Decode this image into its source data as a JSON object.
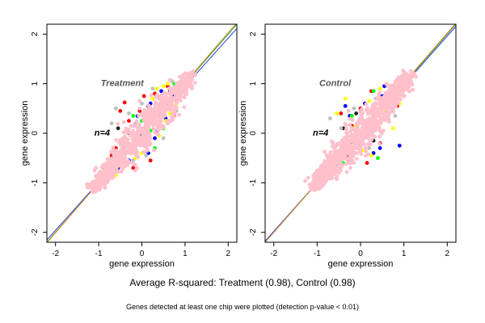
{
  "summary": "Average R-squared: Treatment (0.98), Control (0.98)",
  "footnote": "Genes detected at least one chip were plotted (detection p-value < 0.01)",
  "chart_data": [
    {
      "type": "scatter",
      "title": "Treatment",
      "annotation": "n=4",
      "xlabel": "gene expression",
      "ylabel": "gene expression",
      "xlim": [
        -2.2,
        2.2
      ],
      "ylim": [
        -2.2,
        2.2
      ],
      "xticks": [
        -2,
        -1,
        0,
        1,
        2
      ],
      "yticks": [
        -2,
        -1,
        0,
        1,
        2
      ],
      "grid": false,
      "reference_lines": [
        {
          "slope": 1.0,
          "intercept": 0.0,
          "color": "#2aa02a"
        },
        {
          "slope": 0.97,
          "intercept": -0.02,
          "color": "#2b3cd6"
        },
        {
          "slope": 1.01,
          "intercept": 0.01,
          "color": "#e08a2c"
        }
      ],
      "series": [
        {
          "color": "#0000ff",
          "points": [
            [
              -1.0,
              -0.95
            ],
            [
              -0.75,
              -0.6
            ],
            [
              -0.4,
              -0.2
            ],
            [
              0.1,
              0.0
            ],
            [
              0.35,
              0.05
            ],
            [
              0.3,
              -0.1
            ],
            [
              0.55,
              0.3
            ],
            [
              0.6,
              0.55
            ],
            [
              0.45,
              0.85
            ],
            [
              0.85,
              0.9
            ],
            [
              -0.1,
              0.35
            ],
            [
              -0.3,
              -0.55
            ],
            [
              0.2,
              0.6
            ],
            [
              0.7,
              0.75
            ],
            [
              -0.55,
              -0.7
            ],
            [
              0.15,
              -0.4
            ]
          ]
        },
        {
          "color": "#ff0000",
          "points": [
            [
              -0.5,
              0.45
            ],
            [
              -0.4,
              0.62
            ],
            [
              -0.6,
              -0.3
            ],
            [
              -0.05,
              0.45
            ],
            [
              0.2,
              -0.55
            ],
            [
              0.4,
              0.2
            ],
            [
              0.6,
              0.95
            ],
            [
              -0.2,
              -0.7
            ],
            [
              0.5,
              0.5
            ],
            [
              0.05,
              0.75
            ],
            [
              -0.7,
              -0.45
            ],
            [
              0.75,
              0.35
            ],
            [
              0.3,
              0.8
            ],
            [
              -0.3,
              0.25
            ]
          ]
        },
        {
          "color": "#ffff00",
          "points": [
            [
              0.35,
              0.9
            ],
            [
              0.5,
              0.95
            ],
            [
              0.7,
              0.7
            ],
            [
              0.8,
              0.6
            ],
            [
              0.9,
              0.8
            ],
            [
              -0.15,
              -0.5
            ],
            [
              0.1,
              -0.25
            ],
            [
              0.4,
              -0.05
            ],
            [
              0.6,
              1.0
            ],
            [
              0.25,
              0.7
            ],
            [
              -0.45,
              -0.65
            ],
            [
              0.95,
              1.05
            ],
            [
              0.55,
              0.25
            ],
            [
              0.65,
              0.4
            ],
            [
              0.0,
              -0.4
            ],
            [
              -0.6,
              -0.85
            ]
          ]
        },
        {
          "color": "#00ff00",
          "points": [
            [
              -0.9,
              -0.7
            ],
            [
              -0.65,
              -0.55
            ],
            [
              -0.3,
              -0.35
            ],
            [
              0.0,
              0.25
            ],
            [
              0.3,
              -0.3
            ],
            [
              0.5,
              0.1
            ],
            [
              0.6,
              0.7
            ],
            [
              0.75,
              1.0
            ],
            [
              -0.2,
              0.35
            ],
            [
              0.2,
              0.05
            ],
            [
              -0.5,
              -0.2
            ],
            [
              0.85,
              0.95
            ]
          ]
        },
        {
          "color": "#222222",
          "points": [
            [
              -0.55,
              0.1
            ],
            [
              0.15,
              0.55
            ],
            [
              0.4,
              0.35
            ],
            [
              0.65,
              0.85
            ],
            [
              -0.3,
              0.0
            ]
          ]
        },
        {
          "color": "#bebebe",
          "points": [
            [
              -0.6,
              0.5
            ],
            [
              -0.7,
              0.2
            ],
            [
              -0.3,
              0.4
            ],
            [
              0.1,
              -0.45
            ],
            [
              0.4,
              0.7
            ],
            [
              0.6,
              0.2
            ],
            [
              -0.15,
              0.2
            ],
            [
              0.25,
              0.9
            ],
            [
              0.8,
              0.45
            ],
            [
              -0.45,
              -0.15
            ],
            [
              0.0,
              0.6
            ],
            [
              0.5,
              -0.1
            ],
            [
              -0.2,
              -0.55
            ],
            [
              0.7,
              1.05
            ]
          ]
        }
      ]
    },
    {
      "type": "scatter",
      "title": "Control",
      "annotation": "n=4",
      "xlabel": "gene expression",
      "ylabel": "gene expression",
      "xlim": [
        -2.2,
        2.2
      ],
      "ylim": [
        -2.2,
        2.2
      ],
      "xticks": [
        -2,
        -1,
        0,
        1,
        2
      ],
      "yticks": [
        -2,
        -1,
        0,
        1,
        2
      ],
      "grid": false,
      "reference_lines": [
        {
          "slope": 1.0,
          "intercept": 0.0,
          "color": "#2aa02a"
        },
        {
          "slope": 0.985,
          "intercept": -0.01,
          "color": "#2b3cd6"
        },
        {
          "slope": 1.005,
          "intercept": 0.01,
          "color": "#e08a2c"
        }
      ],
      "series": [
        {
          "color": "#0000ff",
          "points": [
            [
              -0.8,
              -0.7
            ],
            [
              -0.35,
              0.55
            ],
            [
              -0.25,
              0.35
            ],
            [
              0.3,
              -0.4
            ],
            [
              0.45,
              -0.3
            ],
            [
              0.5,
              0.75
            ],
            [
              0.7,
              0.9
            ],
            [
              0.9,
              -0.25
            ],
            [
              -0.05,
              -0.15
            ],
            [
              0.1,
              0.6
            ],
            [
              0.55,
              0.95
            ],
            [
              -0.6,
              -0.55
            ]
          ]
        },
        {
          "color": "#ff0000",
          "points": [
            [
              -0.5,
              -0.55
            ],
            [
              -0.3,
              -0.45
            ],
            [
              0.15,
              -0.6
            ],
            [
              0.35,
              0.5
            ],
            [
              0.55,
              0.3
            ],
            [
              0.65,
              0.8
            ],
            [
              0.85,
              0.55
            ],
            [
              -0.45,
              0.4
            ],
            [
              0.0,
              0.5
            ],
            [
              0.45,
              -0.2
            ],
            [
              0.75,
              0.95
            ],
            [
              -0.2,
              0.15
            ],
            [
              0.25,
              0.85
            ]
          ]
        },
        {
          "color": "#ffff00",
          "points": [
            [
              -0.55,
              0.4
            ],
            [
              -0.35,
              0.7
            ],
            [
              0.2,
              0.65
            ],
            [
              0.45,
              0.9
            ],
            [
              0.55,
              0.45
            ],
            [
              0.85,
              0.75
            ],
            [
              0.95,
              0.95
            ],
            [
              -0.1,
              0.15
            ],
            [
              0.25,
              -0.45
            ],
            [
              0.75,
              0.1
            ],
            [
              0.6,
              1.0
            ],
            [
              -0.4,
              -0.5
            ],
            [
              0.05,
              -0.35
            ],
            [
              0.9,
              0.6
            ],
            [
              0.35,
              0.15
            ]
          ]
        },
        {
          "color": "#00ff00",
          "points": [
            [
              -0.7,
              -0.5
            ],
            [
              -0.4,
              -0.6
            ],
            [
              -0.2,
              0.35
            ],
            [
              0.15,
              0.25
            ],
            [
              0.4,
              -0.5
            ],
            [
              0.5,
              0.6
            ],
            [
              0.7,
              0.65
            ],
            [
              0.95,
              0.85
            ],
            [
              -0.55,
              -0.9
            ],
            [
              0.3,
              0.85
            ]
          ]
        },
        {
          "color": "#222222",
          "points": [
            [
              -0.4,
              0.1
            ],
            [
              0.3,
              -0.15
            ],
            [
              0.6,
              0.75
            ],
            [
              -0.1,
              0.4
            ],
            [
              0.8,
              0.6
            ]
          ]
        },
        {
          "color": "#bebebe",
          "points": [
            [
              -0.7,
              0.3
            ],
            [
              -0.45,
              0.1
            ],
            [
              0.0,
              0.45
            ],
            [
              0.2,
              -0.3
            ],
            [
              0.45,
              0.2
            ],
            [
              0.6,
              0.45
            ],
            [
              -0.25,
              -0.2
            ],
            [
              0.35,
              0.7
            ],
            [
              0.8,
              0.35
            ],
            [
              -0.55,
              -0.25
            ],
            [
              0.1,
              0.05
            ],
            [
              0.65,
              0.95
            ],
            [
              0.25,
              0.4
            ],
            [
              -0.15,
              0.5
            ]
          ]
        }
      ]
    }
  ]
}
